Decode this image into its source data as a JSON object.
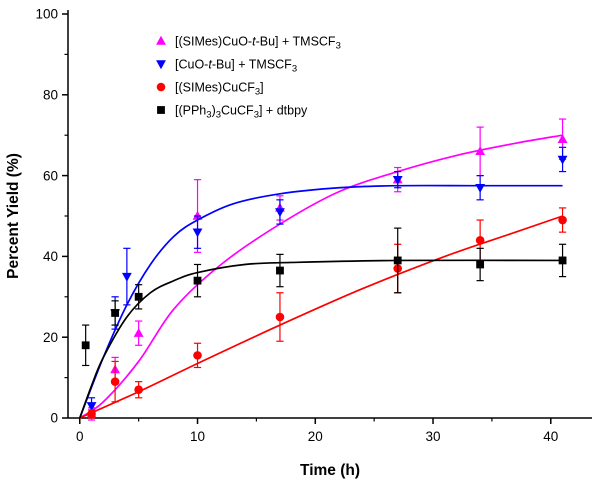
{
  "chart_data": {
    "type": "scatter",
    "title": "",
    "xlabel": "Time (h)",
    "ylabel": "Percent Yield (%)",
    "xlim": [
      -1,
      43.5
    ],
    "ylim": [
      0,
      100
    ],
    "x_ticks": [
      0,
      10,
      20,
      30,
      40
    ],
    "x_minor_ticks": [
      5,
      15,
      25,
      35
    ],
    "y_ticks": [
      0,
      20,
      40,
      60,
      80,
      100
    ],
    "y_minor_ticks": [
      10,
      30,
      50,
      70,
      90
    ],
    "grid": false,
    "legend_position": "inside-top-left",
    "axis_color": "#000000",
    "background_color": "#ffffff",
    "series": [
      {
        "name": "[(SIMes)CuO-t-Bu] + TMSCF₃",
        "color": "#ff00ff",
        "marker": "triangle-up",
        "x": [
          1,
          3,
          5,
          10,
          17,
          27,
          34,
          41
        ],
        "y": [
          1,
          12,
          21,
          50,
          52,
          59,
          66,
          69
        ],
        "yerr": [
          1.5,
          3,
          3,
          9,
          3,
          3,
          6,
          5
        ],
        "fit": {
          "x": [
            0,
            2,
            5,
            8,
            12,
            17,
            22,
            27,
            32,
            37,
            41
          ],
          "y": [
            0,
            4,
            14,
            27,
            38,
            48,
            56,
            61,
            65,
            68,
            70
          ]
        }
      },
      {
        "name": "[CuO-t-Bu] + TMSCF₃",
        "color": "#0000ff",
        "marker": "triangle-down",
        "x": [
          1,
          3,
          4,
          10,
          17,
          27,
          34,
          41
        ],
        "y": [
          3,
          26,
          35,
          46,
          51,
          59,
          57,
          64
        ],
        "yerr": [
          2,
          4,
          7,
          4,
          3,
          2,
          3,
          3
        ],
        "fit": {
          "x": [
            0,
            2,
            4,
            6,
            8,
            10,
            13,
            17,
            22,
            27,
            34,
            41
          ],
          "y": [
            0,
            15,
            28,
            38,
            45,
            49,
            53,
            55.5,
            57,
            57.5,
            57.5,
            57.5
          ]
        }
      },
      {
        "name": "[(SIMes)CuCF₃]",
        "color": "#ff0000",
        "marker": "circle",
        "x": [
          1,
          3,
          5,
          10,
          17,
          27,
          34,
          41
        ],
        "y": [
          1,
          9,
          7,
          15.5,
          25,
          37,
          44,
          49
        ],
        "yerr": [
          1,
          5,
          2,
          3,
          6,
          6,
          5,
          3
        ],
        "fit": {
          "x": [
            0,
            5,
            10,
            17,
            24,
            31,
            37,
            41
          ],
          "y": [
            0,
            6.5,
            13.5,
            23,
            32,
            40,
            46,
            50
          ]
        }
      },
      {
        "name": "[(PPh₃)₃CuCF₃] + dtbpy",
        "color": "#000000",
        "marker": "square",
        "x": [
          0.5,
          3,
          5,
          10,
          17,
          27,
          34,
          41
        ],
        "y": [
          18,
          26,
          30,
          34,
          36.5,
          39,
          38,
          39
        ],
        "yerr": [
          5,
          3,
          3,
          4,
          4,
          8,
          4,
          4
        ],
        "fit": {
          "x": [
            0,
            1,
            2,
            4,
            6,
            8,
            10,
            14,
            18,
            27,
            41
          ],
          "y": [
            0,
            8,
            15,
            25,
            31,
            34,
            36,
            38,
            38.5,
            39,
            39
          ]
        }
      }
    ]
  }
}
